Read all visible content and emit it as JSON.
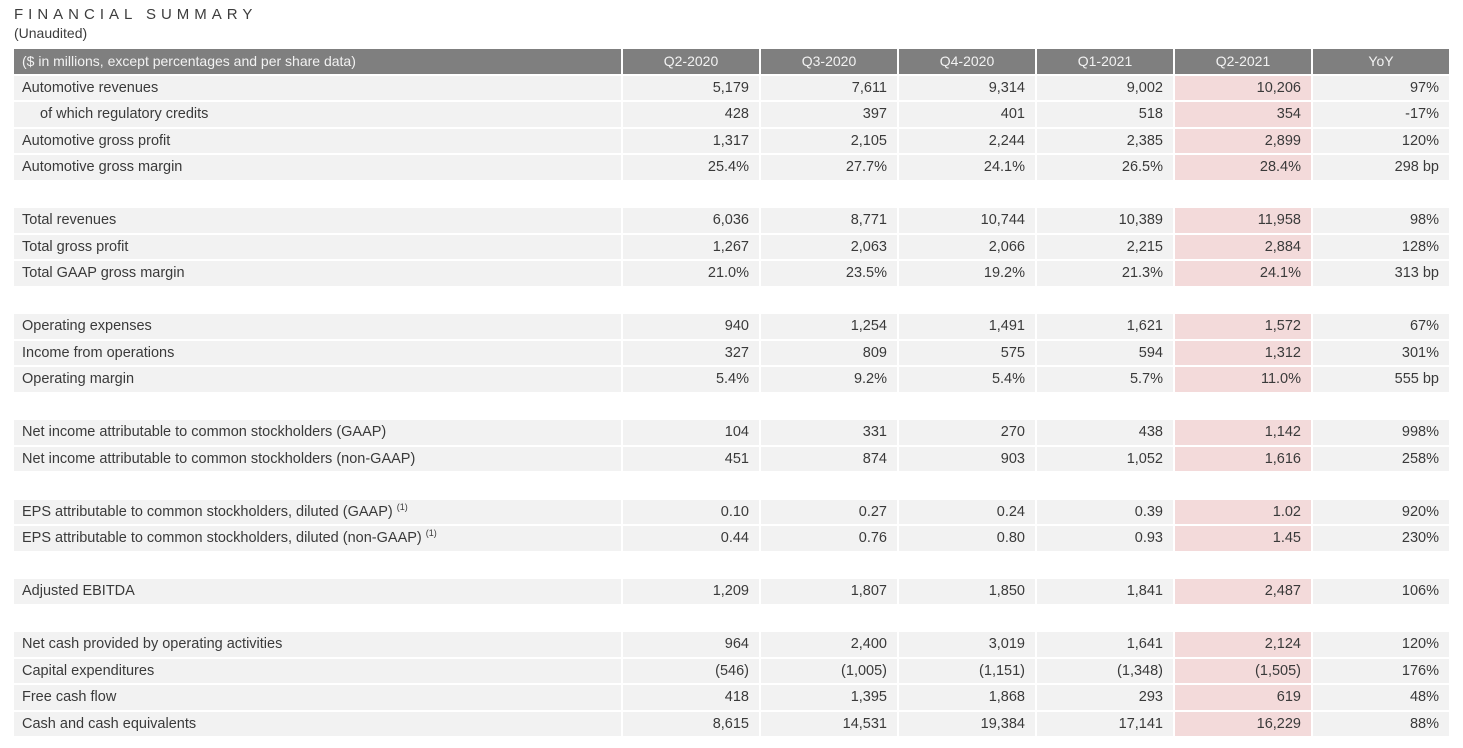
{
  "title": "FINANCIAL SUMMARY",
  "subtitle": "(Unaudited)",
  "colors": {
    "header_bg": "#7f7f7f",
    "header_text": "#f2f2f2",
    "row_bg": "#f2f2f2",
    "highlight_bg": "#f3dada",
    "body_text": "#3a3a3a"
  },
  "table": {
    "header_label": "($ in millions, except percentages and per share data)",
    "columns": [
      "Q2-2020",
      "Q3-2020",
      "Q4-2020",
      "Q1-2021",
      "Q2-2021",
      "YoY"
    ],
    "highlight_column": "Q2-2021",
    "sections": [
      {
        "rows": [
          {
            "label": "Automotive revenues",
            "indent": false,
            "values": [
              "5,179",
              "7,611",
              "9,314",
              "9,002",
              "10,206",
              "97%"
            ]
          },
          {
            "label": "of which regulatory credits",
            "indent": true,
            "values": [
              "428",
              "397",
              "401",
              "518",
              "354",
              "-17%"
            ]
          },
          {
            "label": "Automotive gross profit",
            "indent": false,
            "values": [
              "1,317",
              "2,105",
              "2,244",
              "2,385",
              "2,899",
              "120%"
            ]
          },
          {
            "label": "Automotive gross margin",
            "indent": false,
            "values": [
              "25.4%",
              "27.7%",
              "24.1%",
              "26.5%",
              "28.4%",
              "298 bp"
            ]
          }
        ]
      },
      {
        "rows": [
          {
            "label": "Total revenues",
            "indent": false,
            "values": [
              "6,036",
              "8,771",
              "10,744",
              "10,389",
              "11,958",
              "98%"
            ]
          },
          {
            "label": "Total gross profit",
            "indent": false,
            "values": [
              "1,267",
              "2,063",
              "2,066",
              "2,215",
              "2,884",
              "128%"
            ]
          },
          {
            "label": "Total GAAP gross margin",
            "indent": false,
            "values": [
              "21.0%",
              "23.5%",
              "19.2%",
              "21.3%",
              "24.1%",
              "313 bp"
            ]
          }
        ]
      },
      {
        "rows": [
          {
            "label": "Operating expenses",
            "indent": false,
            "values": [
              "940",
              "1,254",
              "1,491",
              "1,621",
              "1,572",
              "67%"
            ]
          },
          {
            "label": "Income from operations",
            "indent": false,
            "values": [
              "327",
              "809",
              "575",
              "594",
              "1,312",
              "301%"
            ]
          },
          {
            "label": "Operating margin",
            "indent": false,
            "values": [
              "5.4%",
              "9.2%",
              "5.4%",
              "5.7%",
              "11.0%",
              "555 bp"
            ]
          }
        ]
      },
      {
        "rows": [
          {
            "label": "Net income attributable to common stockholders (GAAP)",
            "indent": false,
            "values": [
              "104",
              "331",
              "270",
              "438",
              "1,142",
              "998%"
            ]
          },
          {
            "label": "Net income attributable to common stockholders (non-GAAP)",
            "indent": false,
            "values": [
              "451",
              "874",
              "903",
              "1,052",
              "1,616",
              "258%"
            ]
          }
        ]
      },
      {
        "rows": [
          {
            "label": "EPS attributable to common stockholders, diluted (GAAP)",
            "sup": "(1)",
            "indent": false,
            "values": [
              "0.10",
              "0.27",
              "0.24",
              "0.39",
              "1.02",
              "920%"
            ]
          },
          {
            "label": "EPS attributable to common stockholders, diluted (non-GAAP)",
            "sup": "(1)",
            "indent": false,
            "values": [
              "0.44",
              "0.76",
              "0.80",
              "0.93",
              "1.45",
              "230%"
            ]
          }
        ]
      },
      {
        "rows": [
          {
            "label": "Adjusted EBITDA",
            "indent": false,
            "values": [
              "1,209",
              "1,807",
              "1,850",
              "1,841",
              "2,487",
              "106%"
            ]
          }
        ]
      },
      {
        "rows": [
          {
            "label": "Net cash provided by operating activities",
            "indent": false,
            "values": [
              "964",
              "2,400",
              "3,019",
              "1,641",
              "2,124",
              "120%"
            ]
          },
          {
            "label": "Capital expenditures",
            "indent": false,
            "values": [
              "(546)",
              "(1,005)",
              "(1,151)",
              "(1,348)",
              "(1,505)",
              "176%"
            ]
          },
          {
            "label": "Free cash flow",
            "indent": false,
            "values": [
              "418",
              "1,395",
              "1,868",
              "293",
              "619",
              "48%"
            ]
          },
          {
            "label": "Cash and cash equivalents",
            "indent": false,
            "values": [
              "8,615",
              "14,531",
              "19,384",
              "17,141",
              "16,229",
              "88%"
            ]
          }
        ]
      }
    ]
  }
}
